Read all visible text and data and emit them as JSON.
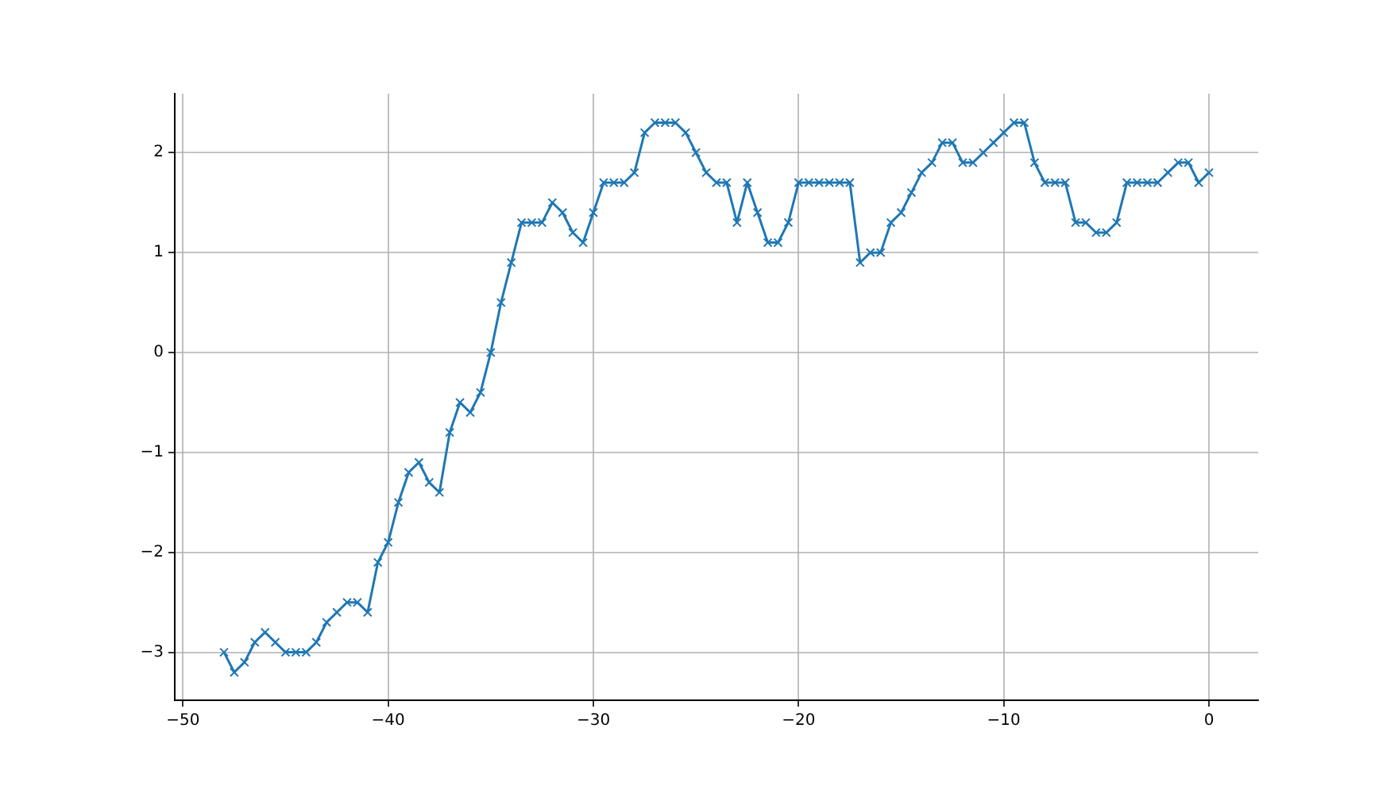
{
  "chart_data": {
    "type": "line",
    "x": [
      -48,
      -47.5,
      -47,
      -46.5,
      -46,
      -45.5,
      -45,
      -44.5,
      -44,
      -43.5,
      -43,
      -42.5,
      -42,
      -41.5,
      -41,
      -40.5,
      -40,
      -39.5,
      -39,
      -38.5,
      -38,
      -37.5,
      -37,
      -36.5,
      -36,
      -35.5,
      -35,
      -34.5,
      -34,
      -33.5,
      -33,
      -32.5,
      -32,
      -31.5,
      -31,
      -30.5,
      -30,
      -29.5,
      -29,
      -28.5,
      -28,
      -27.5,
      -27,
      -26.5,
      -26,
      -25.5,
      -25,
      -24.5,
      -24,
      -23.5,
      -23,
      -22.5,
      -22,
      -21.5,
      -21,
      -20.5,
      -20,
      -19.5,
      -19,
      -18.5,
      -18,
      -17.5,
      -17,
      -16.5,
      -16,
      -15.5,
      -15,
      -14.5,
      -14,
      -13.5,
      -13,
      -12.5,
      -12,
      -11.5,
      -11,
      -10.5,
      -10,
      -9.5,
      -9,
      -8.5,
      -8,
      -7.5,
      -7,
      -6.5,
      -6,
      -5.5,
      -5,
      -4.5,
      -4,
      -3.5,
      -3,
      -2.5,
      -2,
      -1.5,
      -1,
      -0.5,
      0
    ],
    "series": [
      {
        "color": "#1f77b4",
        "values": [
          -3.0,
          -3.2,
          -3.1,
          -2.9,
          -2.8,
          -2.9,
          -3.0,
          -3.0,
          -3.0,
          -2.9,
          -2.7,
          -2.6,
          -2.5,
          -2.5,
          -2.6,
          -2.1,
          -1.9,
          -1.5,
          -1.2,
          -1.1,
          -1.3,
          -1.4,
          -0.8,
          -0.5,
          -0.6,
          -0.4,
          0.0,
          0.5,
          0.9,
          1.3,
          1.3,
          1.3,
          1.5,
          1.4,
          1.2,
          1.1,
          1.4,
          1.7,
          1.7,
          1.7,
          1.8,
          2.2,
          2.3,
          2.3,
          2.3,
          2.2,
          2.0,
          1.8,
          1.7,
          1.7,
          1.3,
          1.7,
          1.4,
          1.1,
          1.1,
          1.3,
          1.7,
          1.7,
          1.7,
          1.7,
          1.7,
          1.7,
          0.9,
          1.0,
          1.0,
          1.3,
          1.4,
          1.6,
          1.8,
          1.9,
          2.1,
          2.1,
          1.9,
          1.9,
          2.0,
          2.1,
          2.2,
          2.3,
          2.3,
          1.9,
          1.7,
          1.7,
          1.7,
          1.3,
          1.3,
          1.2,
          1.2,
          1.3,
          1.7,
          1.7,
          1.7,
          1.7,
          1.8,
          1.9,
          1.9,
          1.7,
          1.8
        ]
      }
    ],
    "xlim": [
      -50.4,
      2.4
    ],
    "xticks": [
      -50,
      -40,
      -30,
      -20,
      -10,
      0
    ],
    "ylim": [
      -3.48,
      2.59
    ],
    "yticks": [
      -3,
      -2,
      -1,
      0,
      1,
      2
    ],
    "grid": true,
    "marker": "cross",
    "line_style": "solid"
  }
}
